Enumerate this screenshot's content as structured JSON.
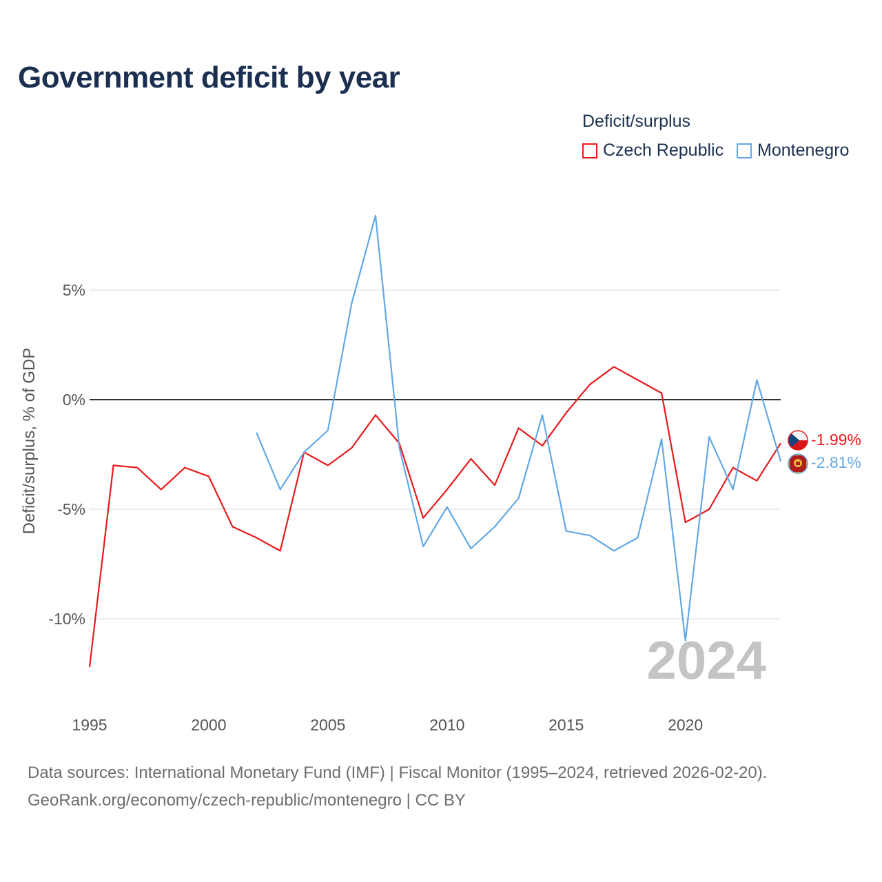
{
  "chart_data": {
    "type": "line",
    "title": "Government deficit by year",
    "xlabel": "",
    "ylabel": "Deficit/surplus, % of GDP",
    "legend_title": "Deficit/surplus",
    "legend_position": "top-right",
    "xlim": [
      1995,
      2024
    ],
    "ylim": [
      -13.5,
      10.2
    ],
    "x_ticks": [
      1995,
      2000,
      2005,
      2010,
      2015,
      2020
    ],
    "x_tick_labels": [
      "1995",
      "2000",
      "2005",
      "2010",
      "2015",
      "2020"
    ],
    "y_ticks": [
      5,
      0,
      -5,
      -10
    ],
    "y_tick_labels": [
      "5%",
      "0%",
      "-5%",
      "-10%"
    ],
    "zero_line": true,
    "grid": true,
    "year_watermark": "2024",
    "series": [
      {
        "name": "Czech Republic",
        "color": "#e8191b",
        "end_label": "-1.99%",
        "flag_icon": "czech-flag-icon",
        "x": [
          1995,
          1996,
          1997,
          1998,
          1999,
          2000,
          2001,
          2002,
          2003,
          2004,
          2005,
          2006,
          2007,
          2008,
          2009,
          2010,
          2011,
          2012,
          2013,
          2014,
          2015,
          2016,
          2017,
          2018,
          2019,
          2020,
          2021,
          2022,
          2023,
          2024
        ],
        "values": [
          -12.2,
          -3.0,
          -3.1,
          -4.1,
          -3.1,
          -3.5,
          -5.8,
          -6.3,
          -6.9,
          -2.4,
          -3.0,
          -2.2,
          -0.7,
          -2.0,
          -5.4,
          -4.1,
          -2.7,
          -3.9,
          -1.3,
          -2.1,
          -0.6,
          0.7,
          1.5,
          0.9,
          0.3,
          -5.6,
          -5.0,
          -3.1,
          -3.7,
          -1.99
        ]
      },
      {
        "name": "Montenegro",
        "color": "#62a8e5",
        "end_label": "-2.81%",
        "flag_icon": "montenegro-flag-icon",
        "x": [
          2002,
          2003,
          2004,
          2005,
          2006,
          2007,
          2008,
          2009,
          2010,
          2011,
          2012,
          2013,
          2014,
          2015,
          2016,
          2017,
          2018,
          2019,
          2020,
          2021,
          2022,
          2023,
          2024
        ],
        "values": [
          -1.5,
          -4.1,
          -2.4,
          -1.4,
          4.4,
          8.4,
          -2.2,
          -6.7,
          -4.9,
          -6.8,
          -5.8,
          -4.5,
          -0.7,
          -6.0,
          -6.2,
          -6.9,
          -6.3,
          -1.8,
          -11.0,
          -1.7,
          -4.1,
          0.9,
          -2.81
        ]
      }
    ]
  },
  "source_line_1": "Data sources: International Monetary Fund (IMF) | Fiscal Monitor (1995–2024, retrieved 2026-02-20).",
  "source_line_2": "GeoRank.org/economy/czech-republic/montenegro | CC BY"
}
